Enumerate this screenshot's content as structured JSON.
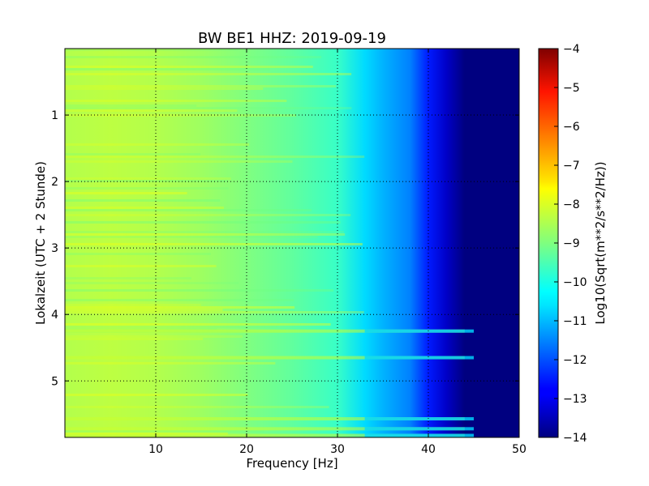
{
  "chart_data": {
    "type": "heatmap",
    "title": "BW BE1 HHZ: 2019-09-19",
    "xlabel": "Frequency [Hz]",
    "ylabel": "Lokalzeit (UTC + 2 Stunde)",
    "xlim": [
      0,
      50
    ],
    "ylim": [
      5.85,
      0
    ],
    "xticks": [
      10,
      20,
      30,
      40,
      50
    ],
    "yticks": [
      1,
      2,
      3,
      4,
      5
    ],
    "grid": true,
    "colorbar": {
      "label": "Log10(Sqrt(m**2/s**2/Hz))",
      "range": [
        -14,
        -4
      ],
      "ticks": [
        -4,
        -5,
        -6,
        -7,
        -8,
        -9,
        -10,
        -11,
        -12,
        -13,
        -14
      ],
      "colormap": "jet"
    },
    "spectral_profile": {
      "frequency_hz": [
        0,
        5,
        10,
        15,
        20,
        25,
        30,
        33,
        35,
        38,
        40,
        42,
        44,
        45,
        50
      ],
      "log10_amplitude": [
        -8.5,
        -8.4,
        -8.5,
        -8.7,
        -9.0,
        -9.3,
        -9.7,
        -10.6,
        -11.0,
        -11.5,
        -12.5,
        -13.3,
        -14,
        -14,
        -14
      ]
    },
    "bright_bands_hours": [
      4.25,
      4.65,
      5.57,
      5.72,
      5.82
    ]
  }
}
